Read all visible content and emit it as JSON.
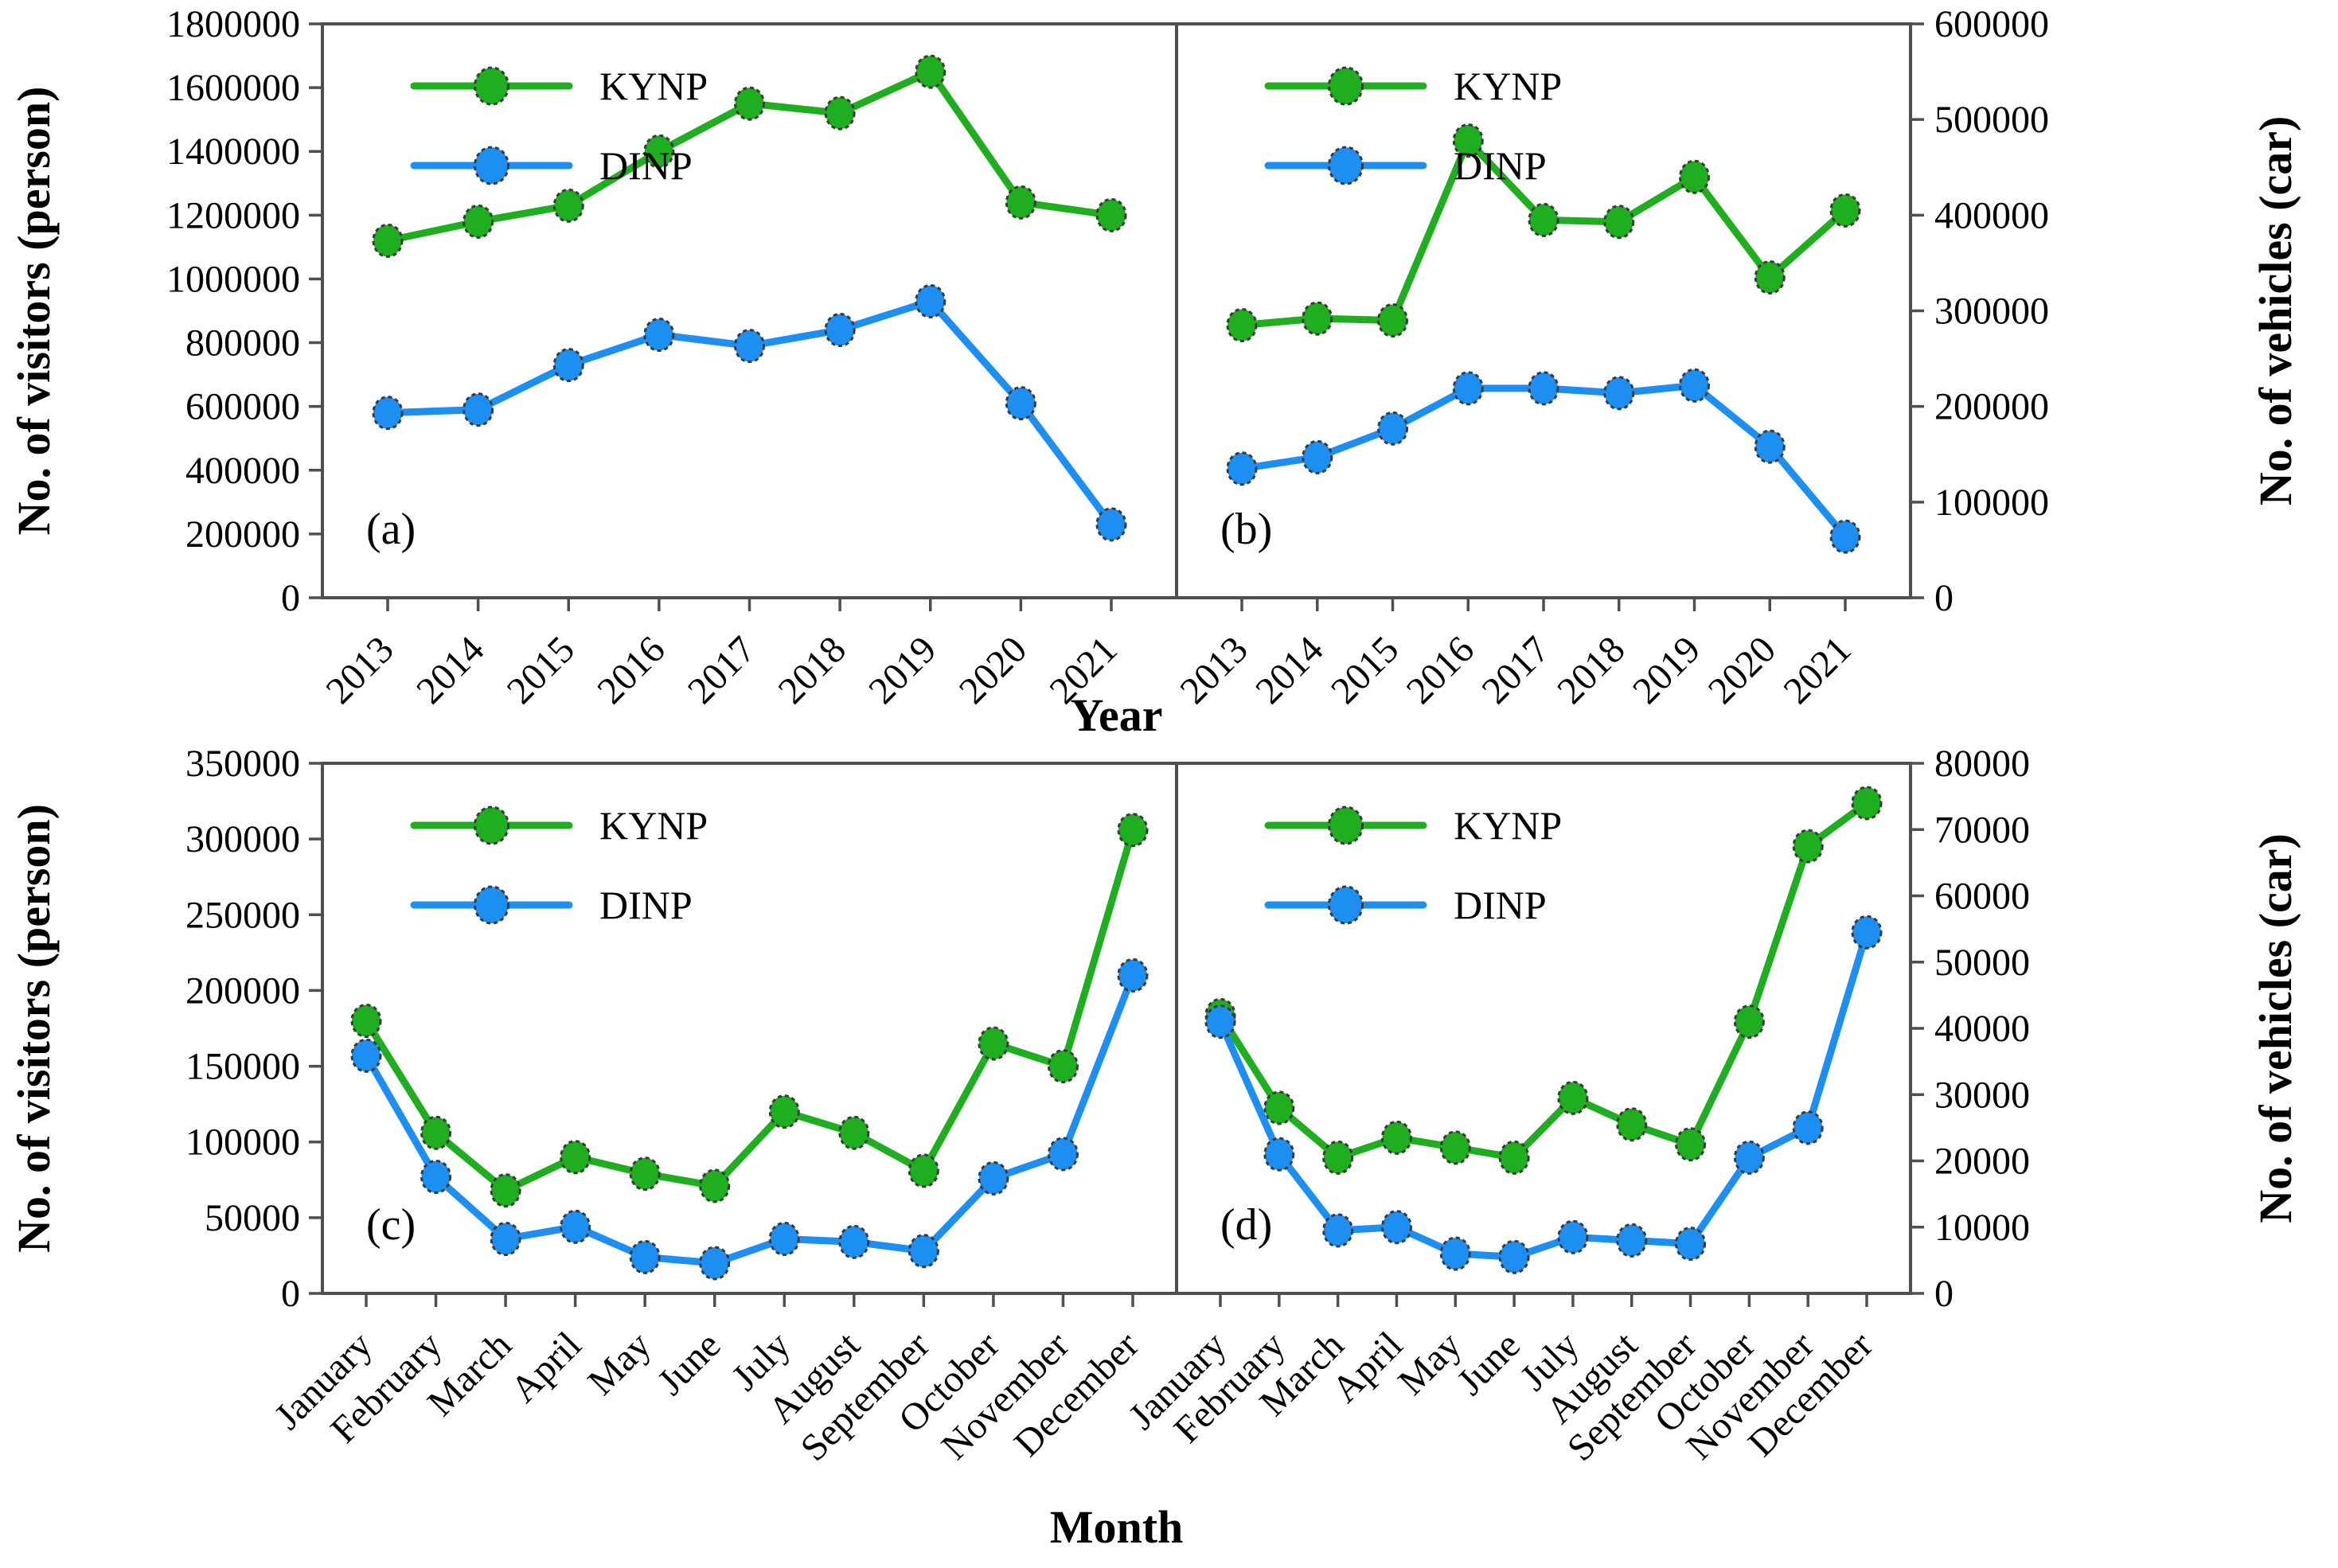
{
  "figure": {
    "background": "#ffffff",
    "frame_color": "#4f4f4f",
    "text_color": "#000000",
    "marker_outline_color": "#3a3a3a",
    "series_colors": {
      "KYNP": "#1fae1f",
      "DINP": "#1e8ff2"
    },
    "legend_labels": [
      "KYNP",
      "DINP"
    ],
    "axis_titles": {
      "top_row_x": "Year",
      "bottom_row_x": "Month",
      "visitors_y": "No. of visitors (person)",
      "vehicles_y": "No. of vehicles (car)"
    }
  },
  "chart_data": [
    {
      "type": "line",
      "panel_label": "(a)",
      "row": 0,
      "col": 0,
      "ylabel": "No. of visitors (person)",
      "ylabel_side": "left",
      "xlabel": "Year",
      "ylim": [
        0,
        1800000
      ],
      "ytick_step": 200000,
      "grid": false,
      "legend_position": "top-left",
      "categories": [
        "2013",
        "2014",
        "2015",
        "2016",
        "2017",
        "2018",
        "2019",
        "2020",
        "2021"
      ],
      "series": [
        {
          "name": "KYNP",
          "values": [
            1120000,
            1180000,
            1230000,
            1400000,
            1550000,
            1520000,
            1650000,
            1240000,
            1200000
          ]
        },
        {
          "name": "DINP",
          "values": [
            580000,
            590000,
            730000,
            825000,
            790000,
            840000,
            930000,
            610000,
            230000
          ]
        }
      ]
    },
    {
      "type": "line",
      "panel_label": "(b)",
      "row": 0,
      "col": 1,
      "ylabel": "No. of vehicles (car)",
      "ylabel_side": "right",
      "xlabel": "Year",
      "ylim": [
        0,
        600000
      ],
      "ytick_step": 100000,
      "grid": false,
      "legend_position": "top-left",
      "categories": [
        "2013",
        "2014",
        "2015",
        "2016",
        "2017",
        "2018",
        "2019",
        "2020",
        "2021"
      ],
      "series": [
        {
          "name": "KYNP",
          "values": [
            285000,
            292000,
            290000,
            478000,
            395000,
            393000,
            440000,
            335000,
            405000
          ]
        },
        {
          "name": "DINP",
          "values": [
            135000,
            147000,
            177000,
            219000,
            219000,
            214000,
            222000,
            158000,
            64000
          ]
        }
      ]
    },
    {
      "type": "line",
      "panel_label": "(c)",
      "row": 1,
      "col": 0,
      "ylabel": "No. of visitors (person)",
      "ylabel_side": "left",
      "xlabel": "Month",
      "ylim": [
        0,
        350000
      ],
      "ytick_step": 50000,
      "grid": false,
      "legend_position": "top-left",
      "categories": [
        "January",
        "February",
        "March",
        "April",
        "May",
        "June",
        "July",
        "August",
        "September",
        "October",
        "November",
        "December"
      ],
      "series": [
        {
          "name": "KYNP",
          "values": [
            180000,
            106000,
            68000,
            90000,
            79000,
            71000,
            120000,
            106000,
            81000,
            165000,
            150000,
            306000
          ]
        },
        {
          "name": "DINP",
          "values": [
            157000,
            77000,
            36000,
            44000,
            24000,
            20000,
            36000,
            34000,
            28000,
            76000,
            92000,
            210000
          ]
        }
      ]
    },
    {
      "type": "line",
      "panel_label": "(d)",
      "row": 1,
      "col": 1,
      "ylabel": "No. of vehicles (car)",
      "ylabel_side": "right",
      "xlabel": "Month",
      "ylim": [
        0,
        80000
      ],
      "ytick_step": 10000,
      "grid": false,
      "legend_position": "top-left",
      "categories": [
        "January",
        "February",
        "March",
        "April",
        "May",
        "June",
        "July",
        "August",
        "September",
        "October",
        "November",
        "December"
      ],
      "series": [
        {
          "name": "KYNP",
          "values": [
            42000,
            28000,
            20500,
            23500,
            22000,
            20500,
            29500,
            25500,
            22500,
            41000,
            67500,
            74000
          ]
        },
        {
          "name": "DINP",
          "values": [
            41000,
            21000,
            9500,
            10000,
            6000,
            5500,
            8500,
            8000,
            7500,
            20500,
            25000,
            54500
          ]
        }
      ]
    }
  ]
}
